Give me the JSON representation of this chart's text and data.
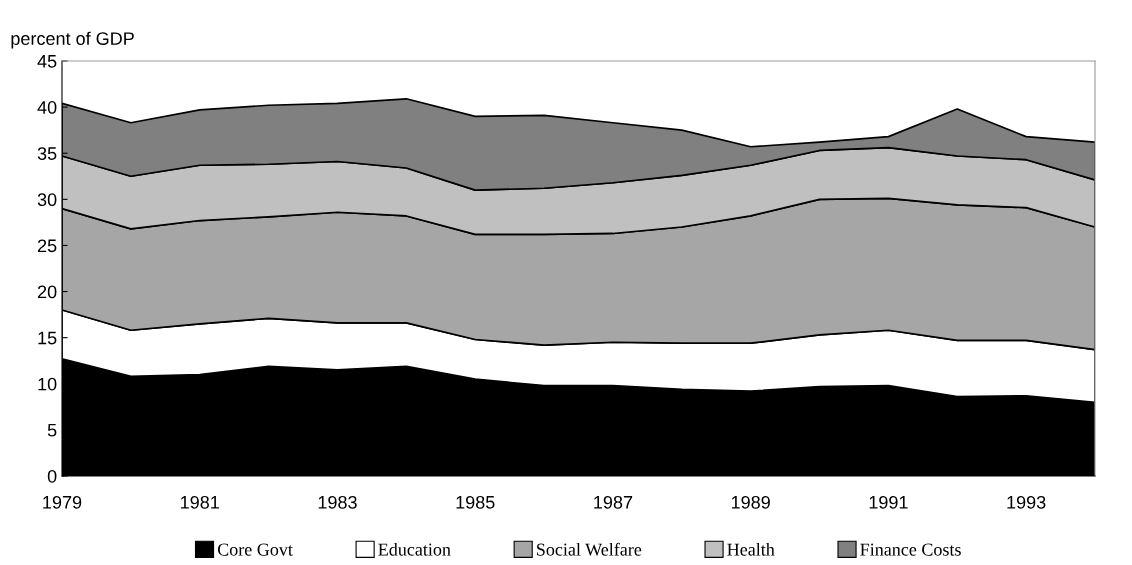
{
  "chart_data": {
    "type": "area",
    "stacked": true,
    "ylabel": "percent of GDP",
    "x": [
      1979,
      1980,
      1981,
      1982,
      1983,
      1984,
      1985,
      1986,
      1987,
      1988,
      1989,
      1990,
      1991,
      1992,
      1993,
      1994
    ],
    "xlim": [
      1979,
      1994
    ],
    "xticks": [
      1979,
      1981,
      1983,
      1985,
      1987,
      1989,
      1991,
      1993
    ],
    "ylim": [
      0,
      45
    ],
    "yticks": [
      0,
      5,
      10,
      15,
      20,
      25,
      30,
      35,
      40,
      45
    ],
    "grid": false,
    "legend": "bottom",
    "series": [
      {
        "name": "Core Govt",
        "color": "#000000",
        "values": [
          12.7,
          10.8,
          11.0,
          11.9,
          11.5,
          11.9,
          10.5,
          9.8,
          9.8,
          9.4,
          9.2,
          9.7,
          9.8,
          8.6,
          8.7,
          8.0
        ]
      },
      {
        "name": "Education",
        "color": "#ffffff",
        "values": [
          5.3,
          5.0,
          5.5,
          5.2,
          5.1,
          4.7,
          4.3,
          4.4,
          4.7,
          5.0,
          5.2,
          5.6,
          6.0,
          6.1,
          6.0,
          5.7
        ]
      },
      {
        "name": "Social Welfare",
        "color": "#a6a6a6",
        "values": [
          11.0,
          11.0,
          11.2,
          11.0,
          12.0,
          11.6,
          11.4,
          12.0,
          11.8,
          12.6,
          13.8,
          14.7,
          14.3,
          14.7,
          14.4,
          13.3
        ]
      },
      {
        "name": "Health",
        "color": "#c0c0c0",
        "values": [
          5.7,
          5.7,
          6.0,
          5.7,
          5.5,
          5.2,
          4.8,
          5.0,
          5.5,
          5.6,
          5.5,
          5.3,
          5.5,
          5.3,
          5.2,
          5.1
        ]
      },
      {
        "name": "Finance Costs",
        "color": "#808080",
        "values": [
          5.7,
          5.8,
          6.0,
          6.4,
          6.3,
          7.5,
          8.0,
          7.9,
          6.5,
          4.9,
          2.0,
          0.9,
          1.2,
          5.1,
          2.5,
          4.1
        ]
      }
    ]
  }
}
